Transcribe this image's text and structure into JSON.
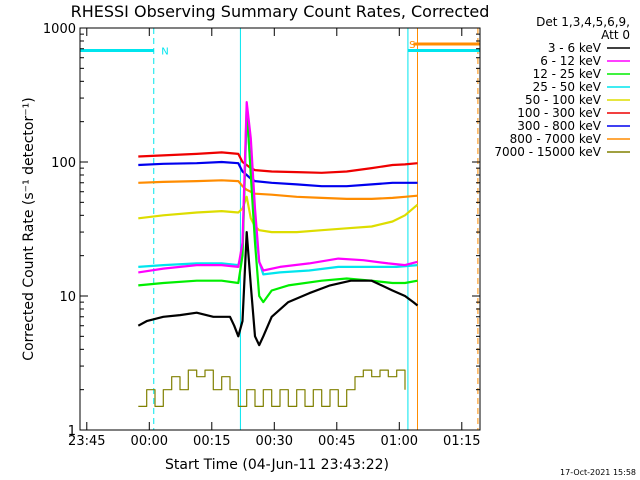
{
  "chart_data": {
    "type": "line",
    "title": "RHESSI Observing Summary Count Rates, Corrected",
    "xlabel": "Start Time (04-Jun-11 23:43:22)",
    "ylabel": "Corrected Count Rate (s⁻¹ detector⁻¹)",
    "yscale": "log",
    "ylim": [
      1,
      1000
    ],
    "xlim_minutes": [
      0,
      96
    ],
    "x_ticks": [
      {
        "minute": 1.63,
        "label": "23:45"
      },
      {
        "minute": 16.63,
        "label": "00:00"
      },
      {
        "minute": 31.63,
        "label": "00:15"
      },
      {
        "minute": 46.63,
        "label": "00:30"
      },
      {
        "minute": 61.63,
        "label": "00:45"
      },
      {
        "minute": 76.63,
        "label": "01:00"
      },
      {
        "minute": 91.63,
        "label": "01:15"
      }
    ],
    "y_ticks": [
      {
        "value": 1,
        "label": "1"
      },
      {
        "value": 10,
        "label": "10"
      },
      {
        "value": 100,
        "label": "100"
      },
      {
        "value": 1000,
        "label": "1000"
      }
    ],
    "legend": {
      "header": [
        "Det 1,3,4,5,6,9,",
        "Att 0"
      ],
      "placement": "right"
    },
    "annotations": [
      {
        "text": "N",
        "minute": 19.5,
        "value": 680,
        "color": "#00e5ee"
      },
      {
        "text": "S",
        "minute": 79.0,
        "value": 760,
        "color": "#ff8c00"
      }
    ],
    "date_stamp": "17-Oct-2021 15:58",
    "series": [
      {
        "name": "3 - 6 keV",
        "color": "#000000",
        "points": [
          [
            14,
            6
          ],
          [
            16,
            6.5
          ],
          [
            20,
            7
          ],
          [
            24,
            7.2
          ],
          [
            28,
            7.5
          ],
          [
            32,
            7
          ],
          [
            36,
            7
          ],
          [
            37,
            6
          ],
          [
            38,
            5
          ],
          [
            39,
            6.5
          ],
          [
            40,
            30
          ],
          [
            41,
            12
          ],
          [
            42,
            5
          ],
          [
            43,
            4.3
          ],
          [
            44,
            5
          ],
          [
            46,
            7
          ],
          [
            50,
            9
          ],
          [
            55,
            10.5
          ],
          [
            60,
            12
          ],
          [
            65,
            13
          ],
          [
            70,
            13
          ],
          [
            75,
            11
          ],
          [
            78,
            10
          ],
          [
            80,
            9
          ],
          [
            81,
            8.5
          ]
        ]
      },
      {
        "name": "6 - 12 keV",
        "color": "#ff00ff",
        "points": [
          [
            14,
            15
          ],
          [
            20,
            16
          ],
          [
            28,
            17
          ],
          [
            34,
            17
          ],
          [
            38,
            16.5
          ],
          [
            39,
            25
          ],
          [
            40,
            280
          ],
          [
            41,
            150
          ],
          [
            42,
            45
          ],
          [
            43,
            18
          ],
          [
            44,
            15.5
          ],
          [
            48,
            16.5
          ],
          [
            55,
            17.5
          ],
          [
            62,
            19
          ],
          [
            68,
            18.5
          ],
          [
            74,
            17.5
          ],
          [
            78,
            17
          ],
          [
            81,
            18
          ]
        ]
      },
      {
        "name": "12 - 25 keV",
        "color": "#00ee00",
        "points": [
          [
            14,
            12
          ],
          [
            20,
            12.5
          ],
          [
            28,
            13
          ],
          [
            34,
            13
          ],
          [
            38,
            12.5
          ],
          [
            39,
            20
          ],
          [
            40,
            260
          ],
          [
            41,
            80
          ],
          [
            42,
            25
          ],
          [
            43,
            10
          ],
          [
            44,
            9
          ],
          [
            46,
            11
          ],
          [
            50,
            12
          ],
          [
            58,
            13
          ],
          [
            64,
            13.5
          ],
          [
            70,
            13
          ],
          [
            75,
            12.5
          ],
          [
            78,
            12.5
          ],
          [
            81,
            13
          ]
        ]
      },
      {
        "name": "25 - 50 keV",
        "color": "#00e5ee",
        "points": [
          [
            14,
            16.5
          ],
          [
            20,
            17
          ],
          [
            28,
            17.5
          ],
          [
            34,
            17.5
          ],
          [
            38,
            17
          ],
          [
            39,
            22
          ],
          [
            40,
            230
          ],
          [
            41,
            90
          ],
          [
            42,
            35
          ],
          [
            43,
            18
          ],
          [
            44,
            14.5
          ],
          [
            48,
            15
          ],
          [
            55,
            15.5
          ],
          [
            62,
            16.5
          ],
          [
            70,
            16.5
          ],
          [
            76,
            16.5
          ],
          [
            81,
            17
          ]
        ]
      },
      {
        "name": "50 - 100 keV",
        "color": "#dddd00",
        "points": [
          [
            14,
            38
          ],
          [
            20,
            40
          ],
          [
            28,
            42
          ],
          [
            34,
            43
          ],
          [
            38,
            42
          ],
          [
            39,
            45
          ],
          [
            40,
            55
          ],
          [
            41,
            38
          ],
          [
            42,
            33
          ],
          [
            43,
            31
          ],
          [
            46,
            30
          ],
          [
            52,
            30
          ],
          [
            58,
            31
          ],
          [
            64,
            32
          ],
          [
            70,
            33
          ],
          [
            75,
            36
          ],
          [
            78,
            40
          ],
          [
            81,
            48
          ]
        ]
      },
      {
        "name": "100 - 300 keV",
        "color": "#ee0000",
        "points": [
          [
            14,
            110
          ],
          [
            20,
            112
          ],
          [
            28,
            115
          ],
          [
            34,
            118
          ],
          [
            38,
            115
          ],
          [
            39,
            100
          ],
          [
            40,
            95
          ],
          [
            41,
            90
          ],
          [
            42,
            87
          ],
          [
            46,
            85
          ],
          [
            52,
            84
          ],
          [
            58,
            83
          ],
          [
            64,
            85
          ],
          [
            70,
            90
          ],
          [
            75,
            95
          ],
          [
            78,
            96
          ],
          [
            81,
            98
          ]
        ]
      },
      {
        "name": "300 - 800 keV",
        "color": "#0000ee",
        "points": [
          [
            14,
            95
          ],
          [
            20,
            97
          ],
          [
            28,
            98
          ],
          [
            34,
            100
          ],
          [
            38,
            98
          ],
          [
            39,
            85
          ],
          [
            40,
            80
          ],
          [
            41,
            75
          ],
          [
            42,
            72
          ],
          [
            46,
            70
          ],
          [
            52,
            68
          ],
          [
            58,
            66
          ],
          [
            64,
            66
          ],
          [
            70,
            68
          ],
          [
            75,
            70
          ],
          [
            78,
            70
          ],
          [
            81,
            70
          ]
        ]
      },
      {
        "name": "800 - 7000 keV",
        "color": "#ff8c00",
        "points": [
          [
            14,
            70
          ],
          [
            20,
            71
          ],
          [
            28,
            72
          ],
          [
            34,
            73
          ],
          [
            38,
            72
          ],
          [
            39,
            66
          ],
          [
            40,
            62
          ],
          [
            41,
            60
          ],
          [
            42,
            58
          ],
          [
            46,
            57
          ],
          [
            52,
            55
          ],
          [
            58,
            54
          ],
          [
            64,
            53
          ],
          [
            70,
            53
          ],
          [
            75,
            54
          ],
          [
            78,
            55
          ],
          [
            81,
            56
          ]
        ]
      },
      {
        "name": "7000 - 15000 keV",
        "color": "#808000",
        "points": [
          [
            14,
            1.5
          ],
          [
            16,
            2
          ],
          [
            18,
            1.5
          ],
          [
            20,
            2
          ],
          [
            22,
            2.5
          ],
          [
            24,
            2
          ],
          [
            26,
            2.8
          ],
          [
            28,
            2.5
          ],
          [
            30,
            2.8
          ],
          [
            32,
            2
          ],
          [
            34,
            2.5
          ],
          [
            36,
            2
          ],
          [
            38,
            1.5
          ],
          [
            40,
            2
          ],
          [
            42,
            1.5
          ],
          [
            44,
            2
          ],
          [
            46,
            1.5
          ],
          [
            48,
            2
          ],
          [
            50,
            1.5
          ],
          [
            52,
            2
          ],
          [
            54,
            1.5
          ],
          [
            56,
            2
          ],
          [
            58,
            1.5
          ],
          [
            60,
            2
          ],
          [
            62,
            1.5
          ],
          [
            64,
            2
          ],
          [
            66,
            2.5
          ],
          [
            68,
            2.8
          ],
          [
            70,
            2.5
          ],
          [
            72,
            2.8
          ],
          [
            74,
            2.5
          ],
          [
            76,
            2.8
          ],
          [
            78,
            2
          ]
        ]
      }
    ],
    "flags": [
      {
        "name": "night",
        "color": "#00e5ee",
        "segments": [
          [
            0,
            680,
            17.7,
            680
          ],
          [
            78.7,
            680,
            96,
            680
          ]
        ]
      },
      {
        "name": "saa",
        "color": "#ff8c00",
        "segments": [
          [
            80,
            760,
            96,
            760
          ]
        ]
      }
    ],
    "vlines": [
      {
        "minute": 0,
        "color": "#00e5ee",
        "style": "solid"
      },
      {
        "minute": 17.7,
        "color": "#00e5ee",
        "style": "dashed"
      },
      {
        "minute": 38.5,
        "color": "#00e5ee",
        "style": "solid"
      },
      {
        "minute": 78.7,
        "color": "#00e5ee",
        "style": "solid"
      },
      {
        "minute": 81.0,
        "color": "#ff8c00",
        "style": "solid"
      },
      {
        "minute": 95.5,
        "color": "#ff8c00",
        "style": "dashed"
      }
    ]
  }
}
